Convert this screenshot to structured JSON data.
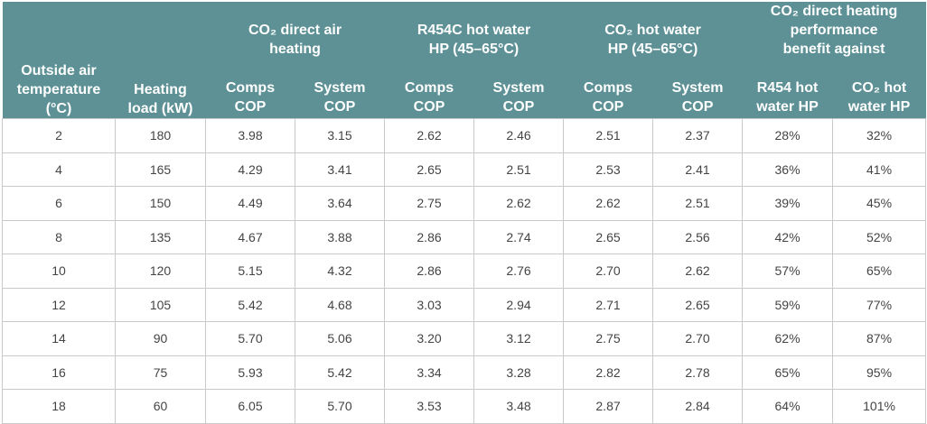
{
  "header": {
    "outside_air": [
      "Outside air",
      "temperature",
      "(°C)"
    ],
    "heating_load": [
      "Heating",
      "load (kW)"
    ],
    "groups": [
      [
        "CO₂ direct air",
        "heating"
      ],
      [
        "R454C  hot water",
        "HP (45–65°C)"
      ],
      [
        "CO₂ hot water",
        "HP (45–65°C)"
      ],
      [
        "CO₂ direct heating",
        "performance",
        "benefit against"
      ]
    ],
    "sub": [
      [
        "Comps",
        "COP"
      ],
      [
        "System",
        "COP"
      ],
      [
        "Comps",
        "COP"
      ],
      [
        "System",
        "COP"
      ],
      [
        "Comps",
        "COP"
      ],
      [
        "System",
        "COP"
      ],
      [
        "R454  hot",
        "water HP"
      ],
      [
        "CO₂ hot",
        "water HP"
      ]
    ]
  },
  "rows": [
    [
      "2",
      "180",
      "3.98",
      "3.15",
      "2.62",
      "2.46",
      "2.51",
      "2.37",
      "28%",
      "32%"
    ],
    [
      "4",
      "165",
      "4.29",
      "3.41",
      "2.65",
      "2.51",
      "2.53",
      "2.41",
      "36%",
      "41%"
    ],
    [
      "6",
      "150",
      "4.49",
      "3.64",
      "2.75",
      "2.62",
      "2.62",
      "2.51",
      "39%",
      "45%"
    ],
    [
      "8",
      "135",
      "4.67",
      "3.88",
      "2.86",
      "2.74",
      "2.65",
      "2.56",
      "42%",
      "52%"
    ],
    [
      "10",
      "120",
      "5.15",
      "4.32",
      "2.86",
      "2.76",
      "2.70",
      "2.62",
      "57%",
      "65%"
    ],
    [
      "12",
      "105",
      "5.42",
      "4.68",
      "3.03",
      "2.94",
      "2.71",
      "2.65",
      "59%",
      "77%"
    ],
    [
      "14",
      "90",
      "5.70",
      "5.06",
      "3.20",
      "3.12",
      "2.75",
      "2.70",
      "62%",
      "87%"
    ],
    [
      "16",
      "75",
      "5.93",
      "5.42",
      "3.34",
      "3.28",
      "2.82",
      "2.78",
      "65%",
      "95%"
    ],
    [
      "18",
      "60",
      "6.05",
      "5.70",
      "3.53",
      "3.48",
      "2.87",
      "2.84",
      "64%",
      "101%"
    ]
  ],
  "colors": {
    "header_bg": "#5d9196",
    "header_text": "#ffffff",
    "border": "#c9c9c9",
    "cell_text": "#444444"
  }
}
